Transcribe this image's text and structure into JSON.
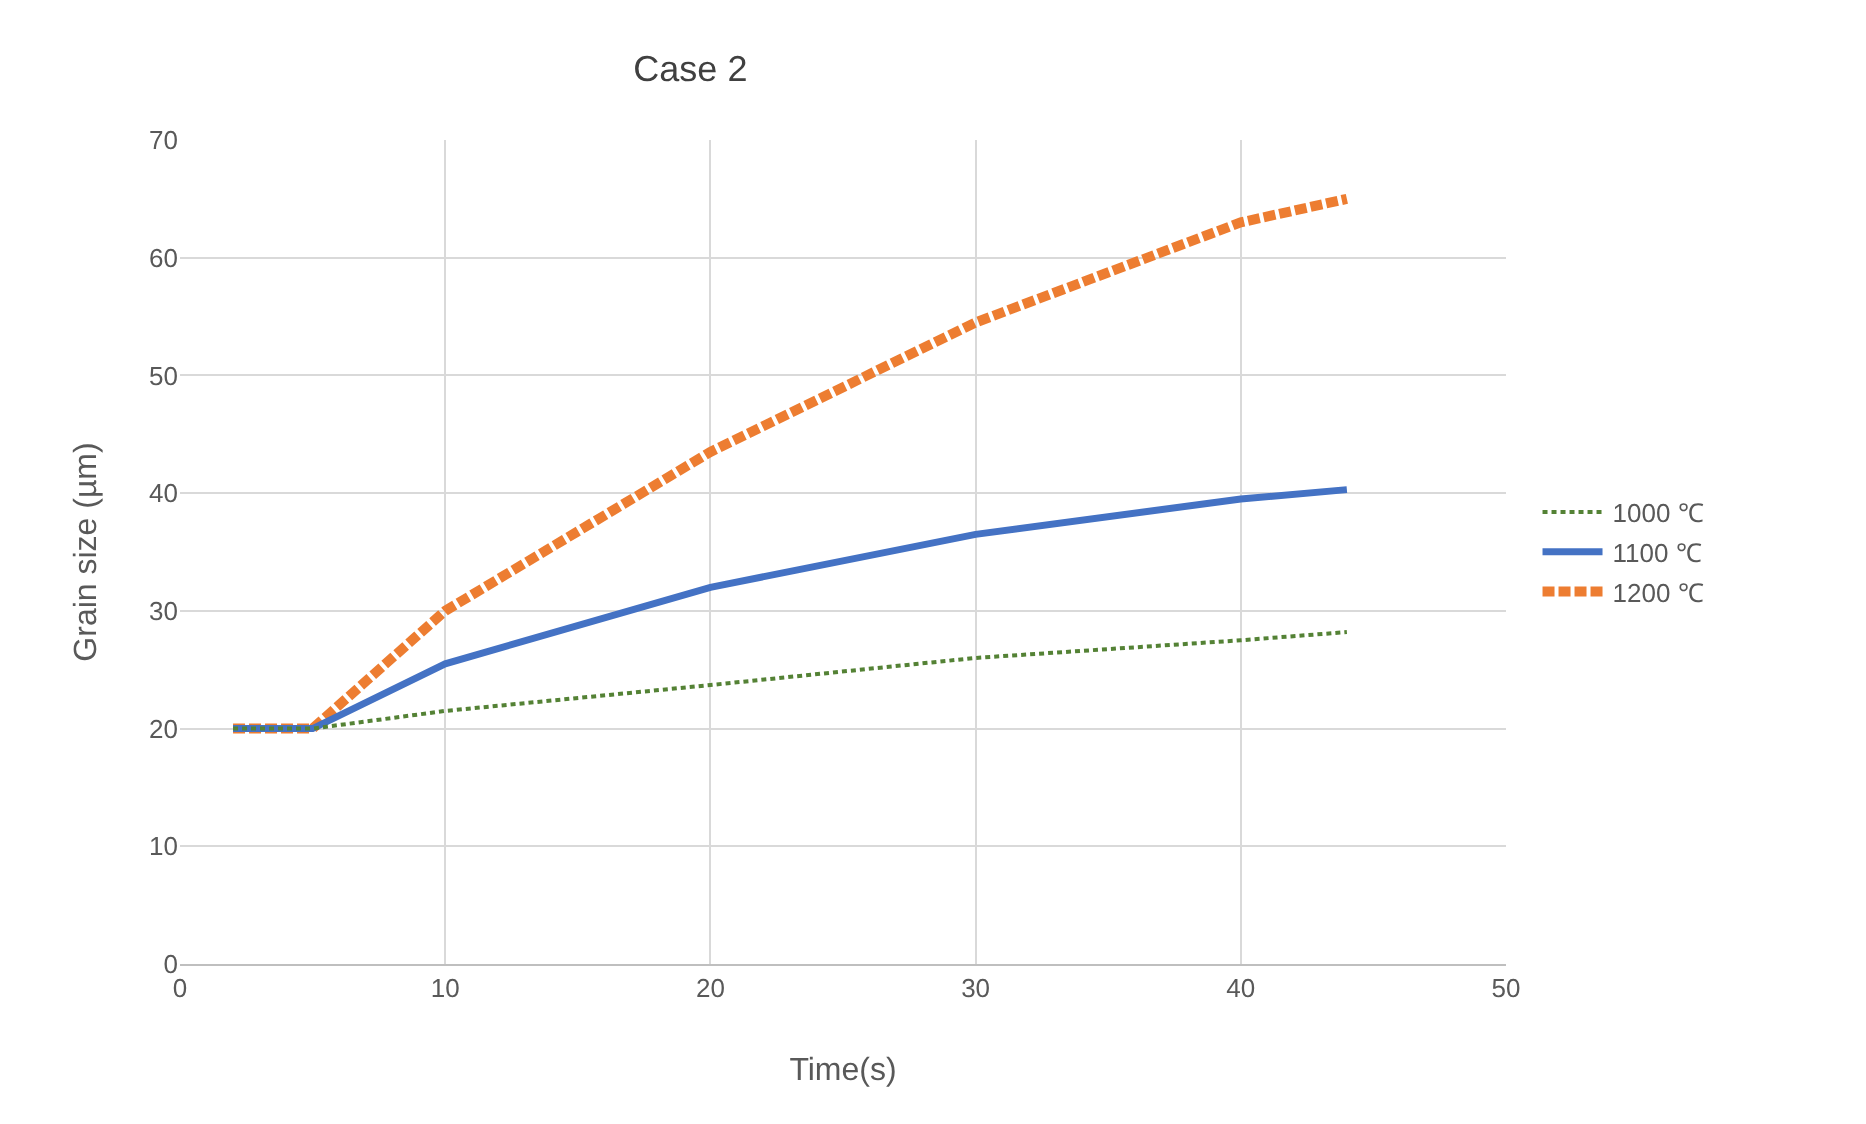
{
  "chart_data": {
    "type": "line",
    "title": "Case 2",
    "xlabel": "Time(s)",
    "ylabel": "Grain size (µm)",
    "x": [
      2,
      5,
      10,
      20,
      30,
      40,
      44
    ],
    "series": [
      {
        "name": "1000 ℃",
        "color": "#548235",
        "line_style": "dotted",
        "values": [
          20,
          20,
          21.5,
          23.7,
          26,
          27.5,
          28.2
        ]
      },
      {
        "name": "1100 ℃",
        "color": "#4472c4",
        "line_style": "solid",
        "values": [
          20,
          20,
          25.5,
          32,
          36.5,
          39.5,
          40.3
        ]
      },
      {
        "name": "1200 ℃",
        "color": "#ed7d31",
        "line_style": "dashed",
        "values": [
          20,
          20,
          30,
          43.5,
          54.5,
          63,
          65
        ]
      }
    ],
    "xlim": [
      0,
      50
    ],
    "xticks": [
      0,
      10,
      20,
      30,
      40,
      50
    ],
    "ylim": [
      0,
      70
    ],
    "yticks": [
      0,
      10,
      20,
      30,
      40,
      50,
      60,
      70
    ],
    "grid": true,
    "legend": "right",
    "marker": "none"
  }
}
